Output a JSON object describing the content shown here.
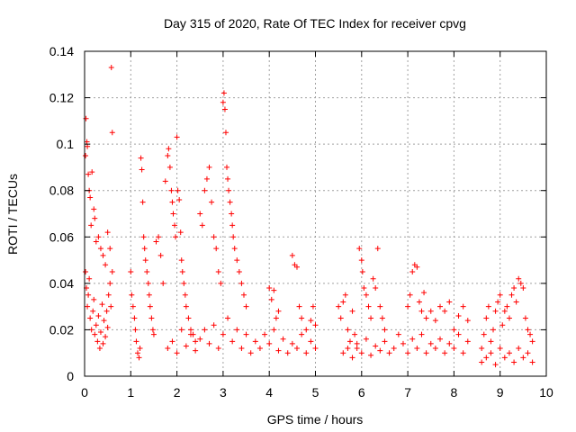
{
  "chart_data": {
    "type": "scatter",
    "title": "Day 315 of 2020, Rate Of TEC Index for receiver cpvg",
    "xlabel": "GPS time / hours",
    "ylabel": "ROTI / TECUs",
    "xlim": [
      0,
      10
    ],
    "ylim": [
      0,
      0.14
    ],
    "xticks": [
      0,
      1,
      2,
      3,
      4,
      5,
      6,
      7,
      8,
      9,
      10
    ],
    "yticks": [
      0,
      0.02,
      0.04,
      0.06,
      0.08,
      0.1,
      0.12,
      0.14
    ],
    "xtick_labels": [
      "0",
      "1",
      "2",
      "3",
      "4",
      "5",
      "6",
      "7",
      "8",
      "9",
      "10"
    ],
    "ytick_labels": [
      "0",
      "0.02",
      "0.04",
      "0.06",
      "0.08",
      "0.1",
      "0.12",
      "0.14"
    ],
    "grid": true,
    "marker": "+",
    "marker_color": "#ff0000",
    "series": [
      {
        "name": "ROTI",
        "points": [
          [
            0.02,
            0.095
          ],
          [
            0.03,
            0.111
          ],
          [
            0.05,
            0.101
          ],
          [
            0.06,
            0.099
          ],
          [
            0.08,
            0.087
          ],
          [
            0.1,
            0.08
          ],
          [
            0.12,
            0.077
          ],
          [
            0.14,
            0.065
          ],
          [
            0.16,
            0.088
          ],
          [
            0.2,
            0.072
          ],
          [
            0.22,
            0.068
          ],
          [
            0.25,
            0.058
          ],
          [
            0.3,
            0.06
          ],
          [
            0.35,
            0.055
          ],
          [
            0.4,
            0.052
          ],
          [
            0.45,
            0.048
          ],
          [
            0.5,
            0.062
          ],
          [
            0.55,
            0.055
          ],
          [
            0.58,
            0.133
          ],
          [
            0.6,
            0.105
          ],
          [
            0.02,
            0.045
          ],
          [
            0.04,
            0.038
          ],
          [
            0.06,
            0.03
          ],
          [
            0.08,
            0.035
          ],
          [
            0.1,
            0.042
          ],
          [
            0.12,
            0.025
          ],
          [
            0.15,
            0.02
          ],
          [
            0.18,
            0.028
          ],
          [
            0.2,
            0.033
          ],
          [
            0.22,
            0.018
          ],
          [
            0.25,
            0.022
          ],
          [
            0.28,
            0.015
          ],
          [
            0.3,
            0.026
          ],
          [
            0.33,
            0.012
          ],
          [
            0.35,
            0.019
          ],
          [
            0.38,
            0.031
          ],
          [
            0.4,
            0.014
          ],
          [
            0.42,
            0.024
          ],
          [
            0.45,
            0.017
          ],
          [
            0.48,
            0.028
          ],
          [
            0.5,
            0.021
          ],
          [
            0.52,
            0.035
          ],
          [
            0.55,
            0.04
          ],
          [
            0.57,
            0.03
          ],
          [
            0.6,
            0.045
          ],
          [
            1.0,
            0.045
          ],
          [
            1.02,
            0.035
          ],
          [
            1.05,
            0.03
          ],
          [
            1.08,
            0.025
          ],
          [
            1.1,
            0.02
          ],
          [
            1.12,
            0.015
          ],
          [
            1.15,
            0.01
          ],
          [
            1.18,
            0.008
          ],
          [
            1.2,
            0.012
          ],
          [
            1.22,
            0.094
          ],
          [
            1.24,
            0.089
          ],
          [
            1.26,
            0.075
          ],
          [
            1.28,
            0.06
          ],
          [
            1.3,
            0.055
          ],
          [
            1.32,
            0.05
          ],
          [
            1.35,
            0.045
          ],
          [
            1.38,
            0.04
          ],
          [
            1.4,
            0.035
          ],
          [
            1.42,
            0.03
          ],
          [
            1.45,
            0.025
          ],
          [
            1.48,
            0.02
          ],
          [
            1.5,
            0.018
          ],
          [
            1.55,
            0.058
          ],
          [
            1.6,
            0.06
          ],
          [
            1.65,
            0.052
          ],
          [
            1.7,
            0.04
          ],
          [
            1.75,
            0.084
          ],
          [
            1.8,
            0.095
          ],
          [
            1.82,
            0.098
          ],
          [
            1.85,
            0.09
          ],
          [
            1.88,
            0.08
          ],
          [
            1.9,
            0.075
          ],
          [
            1.92,
            0.07
          ],
          [
            1.95,
            0.065
          ],
          [
            1.97,
            0.06
          ],
          [
            2.0,
            0.103
          ],
          [
            2.02,
            0.08
          ],
          [
            2.05,
            0.076
          ],
          [
            2.08,
            0.062
          ],
          [
            2.1,
            0.05
          ],
          [
            2.12,
            0.045
          ],
          [
            2.15,
            0.04
          ],
          [
            2.18,
            0.035
          ],
          [
            2.2,
            0.03
          ],
          [
            2.25,
            0.025
          ],
          [
            2.3,
            0.02
          ],
          [
            2.35,
            0.018
          ],
          [
            2.4,
            0.015
          ],
          [
            2.5,
            0.07
          ],
          [
            2.55,
            0.065
          ],
          [
            2.6,
            0.08
          ],
          [
            2.65,
            0.085
          ],
          [
            2.7,
            0.09
          ],
          [
            2.75,
            0.075
          ],
          [
            2.8,
            0.06
          ],
          [
            2.85,
            0.055
          ],
          [
            2.9,
            0.045
          ],
          [
            2.95,
            0.04
          ],
          [
            3.0,
            0.118
          ],
          [
            3.02,
            0.122
          ],
          [
            3.04,
            0.115
          ],
          [
            3.06,
            0.105
          ],
          [
            3.08,
            0.09
          ],
          [
            3.1,
            0.085
          ],
          [
            3.12,
            0.08
          ],
          [
            3.15,
            0.075
          ],
          [
            3.18,
            0.07
          ],
          [
            3.2,
            0.065
          ],
          [
            3.22,
            0.06
          ],
          [
            3.25,
            0.055
          ],
          [
            3.3,
            0.05
          ],
          [
            3.35,
            0.045
          ],
          [
            3.4,
            0.04
          ],
          [
            3.45,
            0.035
          ],
          [
            3.5,
            0.03
          ],
          [
            1.8,
            0.012
          ],
          [
            1.9,
            0.015
          ],
          [
            2.0,
            0.01
          ],
          [
            2.1,
            0.02
          ],
          [
            2.2,
            0.013
          ],
          [
            2.3,
            0.018
          ],
          [
            2.4,
            0.011
          ],
          [
            2.5,
            0.016
          ],
          [
            2.6,
            0.02
          ],
          [
            2.7,
            0.014
          ],
          [
            2.8,
            0.022
          ],
          [
            2.9,
            0.012
          ],
          [
            3.0,
            0.018
          ],
          [
            3.1,
            0.025
          ],
          [
            3.2,
            0.015
          ],
          [
            3.3,
            0.02
          ],
          [
            3.4,
            0.012
          ],
          [
            3.5,
            0.018
          ],
          [
            3.6,
            0.01
          ],
          [
            3.7,
            0.015
          ],
          [
            3.8,
            0.012
          ],
          [
            3.9,
            0.018
          ],
          [
            4.0,
            0.014
          ],
          [
            4.1,
            0.02
          ],
          [
            4.2,
            0.011
          ],
          [
            4.3,
            0.016
          ],
          [
            4.4,
            0.01
          ],
          [
            4.5,
            0.014
          ],
          [
            4.6,
            0.012
          ],
          [
            4.7,
            0.018
          ],
          [
            4.8,
            0.01
          ],
          [
            4.9,
            0.015
          ],
          [
            5.0,
            0.012
          ],
          [
            4.0,
            0.038
          ],
          [
            4.05,
            0.033
          ],
          [
            4.1,
            0.037
          ],
          [
            4.15,
            0.025
          ],
          [
            4.2,
            0.028
          ],
          [
            4.5,
            0.052
          ],
          [
            4.55,
            0.048
          ],
          [
            4.6,
            0.047
          ],
          [
            4.65,
            0.03
          ],
          [
            4.7,
            0.025
          ],
          [
            4.8,
            0.02
          ],
          [
            4.9,
            0.024
          ],
          [
            4.95,
            0.03
          ],
          [
            5.0,
            0.022
          ],
          [
            5.5,
            0.03
          ],
          [
            5.55,
            0.025
          ],
          [
            5.6,
            0.032
          ],
          [
            5.65,
            0.035
          ],
          [
            5.7,
            0.02
          ],
          [
            5.75,
            0.015
          ],
          [
            5.8,
            0.028
          ],
          [
            5.85,
            0.018
          ],
          [
            5.9,
            0.012
          ],
          [
            5.95,
            0.055
          ],
          [
            6.0,
            0.05
          ],
          [
            6.02,
            0.045
          ],
          [
            6.05,
            0.038
          ],
          [
            6.1,
            0.035
          ],
          [
            6.15,
            0.03
          ],
          [
            6.2,
            0.025
          ],
          [
            6.25,
            0.042
          ],
          [
            6.3,
            0.038
          ],
          [
            6.35,
            0.055
          ],
          [
            6.4,
            0.03
          ],
          [
            6.45,
            0.025
          ],
          [
            6.5,
            0.02
          ],
          [
            5.6,
            0.01
          ],
          [
            5.7,
            0.012
          ],
          [
            5.8,
            0.008
          ],
          [
            5.9,
            0.014
          ],
          [
            6.0,
            0.01
          ],
          [
            6.1,
            0.016
          ],
          [
            6.2,
            0.009
          ],
          [
            6.3,
            0.013
          ],
          [
            6.4,
            0.011
          ],
          [
            6.5,
            0.015
          ],
          [
            6.6,
            0.01
          ],
          [
            6.7,
            0.012
          ],
          [
            6.8,
            0.018
          ],
          [
            6.9,
            0.014
          ],
          [
            7.0,
            0.01
          ],
          [
            7.1,
            0.016
          ],
          [
            7.2,
            0.012
          ],
          [
            7.3,
            0.018
          ],
          [
            7.4,
            0.01
          ],
          [
            7.5,
            0.014
          ],
          [
            7.6,
            0.012
          ],
          [
            7.7,
            0.016
          ],
          [
            7.8,
            0.01
          ],
          [
            7.9,
            0.014
          ],
          [
            8.0,
            0.012
          ],
          [
            8.1,
            0.018
          ],
          [
            8.2,
            0.01
          ],
          [
            8.3,
            0.015
          ],
          [
            7.0,
            0.03
          ],
          [
            7.05,
            0.035
          ],
          [
            7.1,
            0.045
          ],
          [
            7.15,
            0.048
          ],
          [
            7.2,
            0.047
          ],
          [
            7.25,
            0.032
          ],
          [
            7.3,
            0.028
          ],
          [
            7.35,
            0.036
          ],
          [
            7.4,
            0.025
          ],
          [
            7.5,
            0.028
          ],
          [
            7.6,
            0.024
          ],
          [
            7.7,
            0.03
          ],
          [
            7.8,
            0.028
          ],
          [
            7.9,
            0.032
          ],
          [
            8.0,
            0.02
          ],
          [
            8.1,
            0.026
          ],
          [
            8.2,
            0.03
          ],
          [
            8.3,
            0.024
          ],
          [
            8.6,
            0.012
          ],
          [
            8.65,
            0.018
          ],
          [
            8.7,
            0.025
          ],
          [
            8.75,
            0.03
          ],
          [
            8.8,
            0.015
          ],
          [
            8.85,
            0.02
          ],
          [
            8.9,
            0.028
          ],
          [
            8.95,
            0.032
          ],
          [
            9.0,
            0.035
          ],
          [
            9.05,
            0.022
          ],
          [
            9.1,
            0.028
          ],
          [
            9.15,
            0.03
          ],
          [
            9.2,
            0.025
          ],
          [
            9.25,
            0.035
          ],
          [
            9.3,
            0.038
          ],
          [
            9.35,
            0.032
          ],
          [
            9.4,
            0.042
          ],
          [
            9.45,
            0.04
          ],
          [
            9.5,
            0.038
          ],
          [
            9.55,
            0.025
          ],
          [
            9.6,
            0.02
          ],
          [
            9.65,
            0.018
          ],
          [
            9.7,
            0.015
          ],
          [
            8.6,
            0.006
          ],
          [
            8.7,
            0.008
          ],
          [
            8.8,
            0.01
          ],
          [
            8.9,
            0.005
          ],
          [
            9.0,
            0.012
          ],
          [
            9.1,
            0.008
          ],
          [
            9.2,
            0.01
          ],
          [
            9.3,
            0.006
          ],
          [
            9.4,
            0.012
          ],
          [
            9.5,
            0.008
          ],
          [
            9.6,
            0.01
          ],
          [
            9.7,
            0.006
          ]
        ]
      }
    ]
  }
}
